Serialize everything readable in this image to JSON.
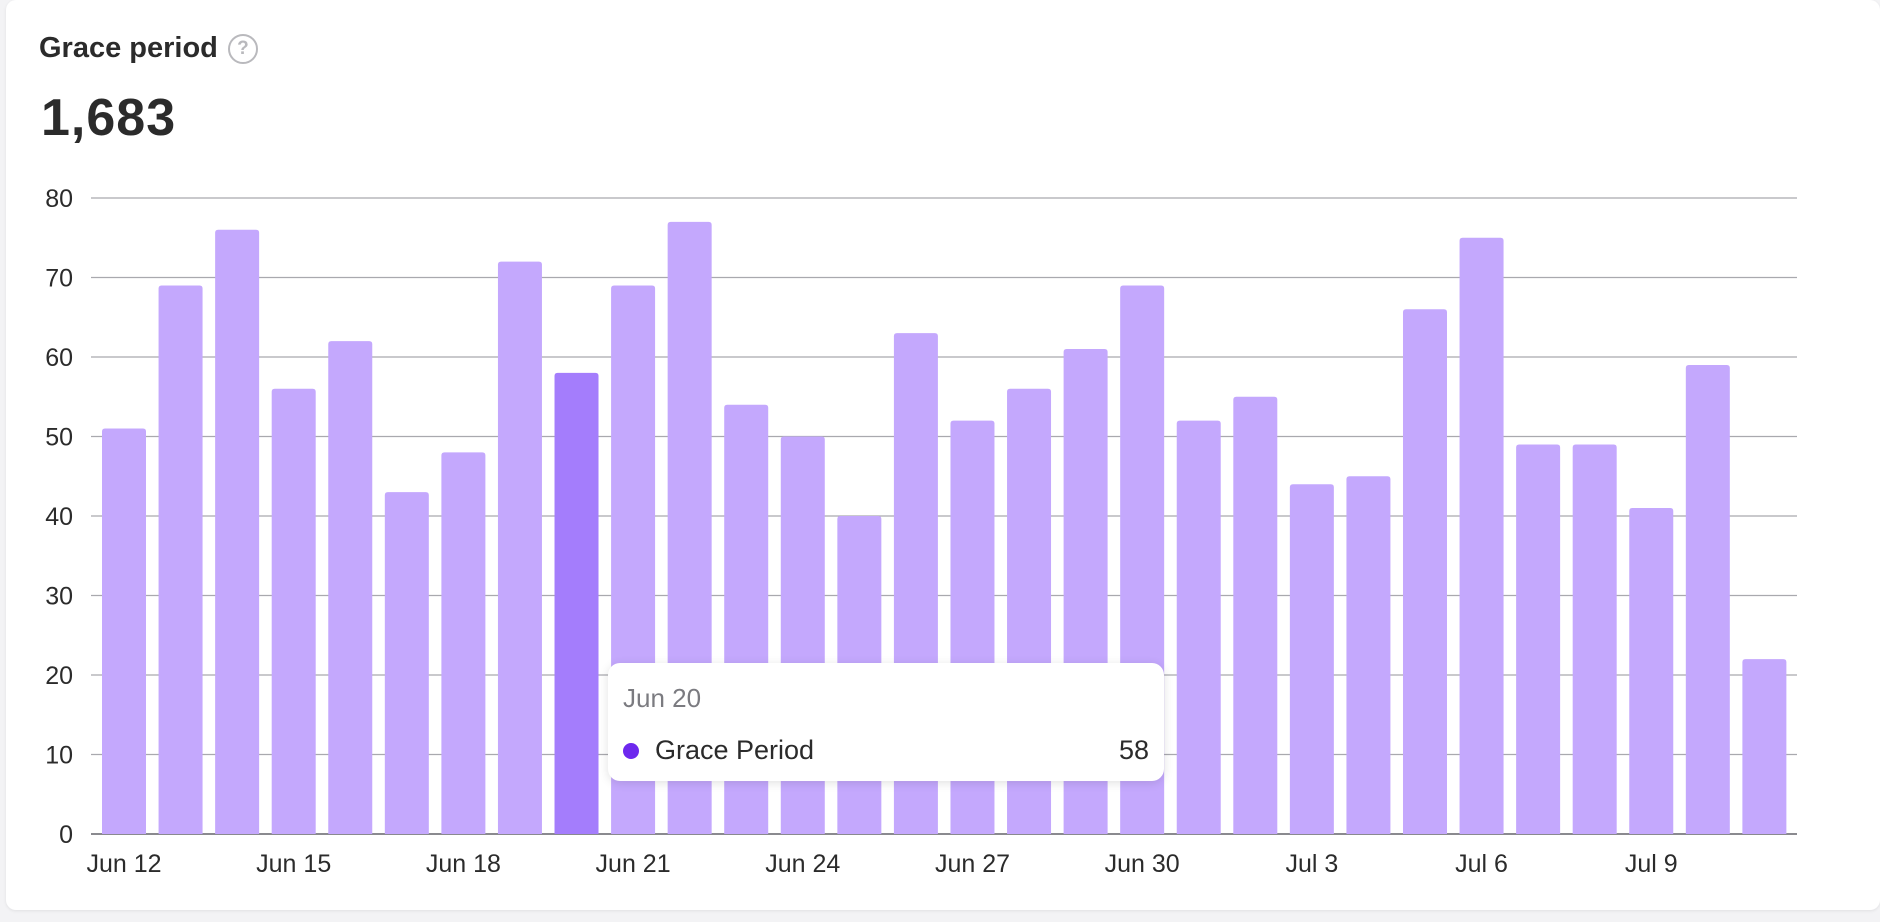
{
  "header": {
    "title": "Grace period",
    "help_icon": "question-circle-icon",
    "help_glyph": "?",
    "total": "1,683"
  },
  "tooltip": {
    "date": "Jun 20",
    "series_name": "Grace Period",
    "value": "58"
  },
  "colors": {
    "bar": "#c4a8fd",
    "bar_highlight": "#a47dfc",
    "tooltip_dot": "#6d28ee",
    "grid": "#a9a9ae",
    "axis": "#8a8a8f"
  },
  "chart_data": {
    "type": "bar",
    "categories": [
      "Jun 12",
      "Jun 13",
      "Jun 14",
      "Jun 15",
      "Jun 16",
      "Jun 17",
      "Jun 18",
      "Jun 19",
      "Jun 20",
      "Jun 21",
      "Jun 22",
      "Jun 23",
      "Jun 24",
      "Jun 25",
      "Jun 26",
      "Jun 27",
      "Jun 28",
      "Jun 29",
      "Jun 30",
      "Jul 1",
      "Jul 2",
      "Jul 3",
      "Jul 4",
      "Jul 5",
      "Jul 6",
      "Jul 7",
      "Jul 8",
      "Jul 9",
      "Jul 10",
      "Jul 11"
    ],
    "values": [
      51,
      69,
      76,
      56,
      62,
      43,
      48,
      72,
      58,
      69,
      77,
      54,
      50,
      40,
      63,
      52,
      56,
      61,
      69,
      52,
      55,
      44,
      45,
      66,
      75,
      49,
      49,
      41,
      59,
      22
    ],
    "x_tick_labels": [
      "Jun 12",
      "Jun 15",
      "Jun 18",
      "Jun 21",
      "Jun 24",
      "Jun 27",
      "Jun 30",
      "Jul 3",
      "Jul 6",
      "Jul 9"
    ],
    "y_ticks": [
      0,
      10,
      20,
      30,
      40,
      50,
      60,
      70,
      80
    ],
    "ylim": [
      0,
      80
    ],
    "highlighted_category": "Jun 20",
    "grid": true,
    "legend": "none"
  }
}
